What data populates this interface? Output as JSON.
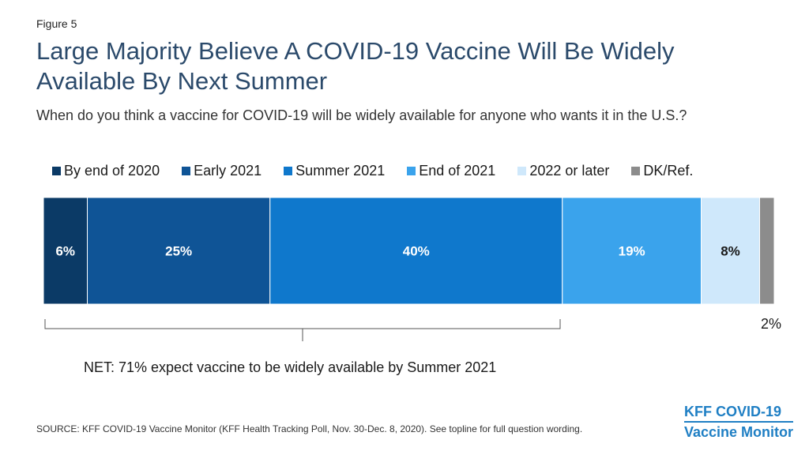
{
  "figure_label": "Figure 5",
  "title": "Large Majority Believe A COVID-19 Vaccine Will Be Widely Available By Next Summer",
  "subtitle": "When do you think a vaccine for COVID-19 will be widely available for anyone who wants it in the U.S.?",
  "net_note": "NET: 71% expect vaccine to be widely available by Summer 2021",
  "source": "SOURCE: KFF COVID-19 Vaccine Monitor (KFF Health Tracking Poll, Nov. 30-Dec. 8, 2020). See topline for full question wording.",
  "logo": {
    "line1": "KFF COVID-19",
    "line2": "Vaccine Monitor"
  },
  "colors": {
    "brand": "#1f7fc4",
    "title": "#2b4a6b"
  },
  "chart_data": {
    "type": "bar",
    "orientation": "horizontal-stacked-100",
    "categories": [
      ""
    ],
    "series": [
      {
        "name": "By end of 2020",
        "values": [
          6
        ],
        "label": "6%",
        "color": "#0b3a66",
        "label_color": "#ffffff"
      },
      {
        "name": "Early 2021",
        "values": [
          25
        ],
        "label": "25%",
        "color": "#0f5496",
        "label_color": "#ffffff"
      },
      {
        "name": "Summer 2021",
        "values": [
          40
        ],
        "label": "40%",
        "color": "#0f78cc",
        "label_color": "#ffffff"
      },
      {
        "name": "End of 2021",
        "values": [
          19
        ],
        "label": "19%",
        "color": "#3aa3ec",
        "label_color": "#ffffff"
      },
      {
        "name": "2022 or later",
        "values": [
          8
        ],
        "label": "8%",
        "color": "#cfe8fb",
        "label_color": "#1a1a1a"
      },
      {
        "name": "DK/Ref.",
        "values": [
          2
        ],
        "label": "2%",
        "color": "#8c8c8c",
        "label_color": "#1a1a1a",
        "label_outside": true
      }
    ],
    "legend_position": "top",
    "grid": false
  }
}
